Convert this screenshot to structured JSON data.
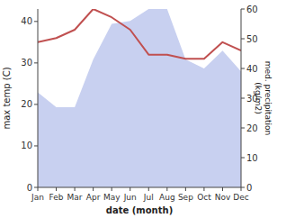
{
  "chart_data": {
    "type": "line",
    "x_label": "date (month)",
    "y_label": "max temp (C)",
    "y2_label": "med. precipitation\n(kg/m2)",
    "categories": [
      "Jan",
      "Feb",
      "Mar",
      "Apr",
      "May",
      "Jun",
      "Jul",
      "Aug",
      "Sep",
      "Oct",
      "Nov",
      "Dec"
    ],
    "series": [
      {
        "type": "line",
        "color": "#c05050",
        "values": [
          35,
          36,
          38,
          43,
          41,
          38,
          32,
          32,
          31,
          31,
          35,
          33
        ]
      },
      {
        "type": "area",
        "color": "#c8d0f0",
        "axis": "y2",
        "values": [
          32,
          27,
          27,
          43,
          55,
          56,
          60,
          60,
          43,
          40,
          46,
          39
        ]
      }
    ],
    "ylim": [
      0,
      43
    ],
    "yticks": [
      0,
      10,
      20,
      30,
      40
    ],
    "y2lim": [
      0,
      60
    ],
    "y2ticks": [
      0,
      10,
      20,
      30,
      40,
      50,
      60
    ],
    "grid": false
  }
}
